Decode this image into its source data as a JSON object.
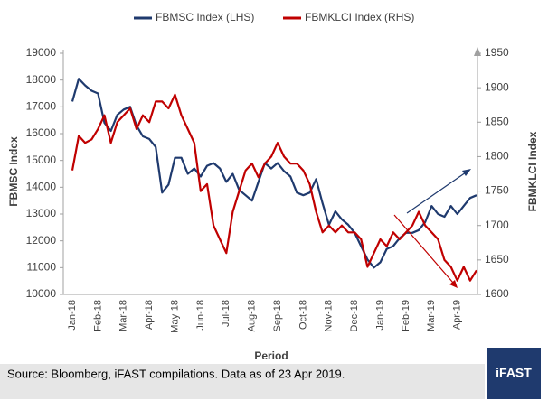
{
  "chart_data": {
    "type": "line",
    "x_label": "Period",
    "y_label": "FBMSC Index",
    "y2_label": "FBMKLCI Index",
    "categories": [
      "Jan-18",
      null,
      null,
      null,
      "Feb-18",
      null,
      null,
      null,
      "Mar-18",
      null,
      null,
      null,
      "Apr-18",
      null,
      null,
      null,
      "May-18",
      null,
      null,
      null,
      "Jun-18",
      null,
      null,
      null,
      "Jul-18",
      null,
      null,
      null,
      "Aug-18",
      null,
      null,
      null,
      "Sep-18",
      null,
      null,
      null,
      "Oct-18",
      null,
      null,
      null,
      "Nov-18",
      null,
      null,
      null,
      "Dec-18",
      null,
      null,
      null,
      "Jan-19",
      null,
      null,
      null,
      "Feb-19",
      null,
      null,
      null,
      "Mar-19",
      null,
      null,
      null,
      "Apr-19",
      null,
      null,
      null
    ],
    "series": [
      {
        "name": "FBMSC Index (LHS)",
        "color": "#1f3a6e",
        "axis": "y",
        "values": [
          17200,
          18050,
          17800,
          17600,
          17500,
          16400,
          16100,
          16700,
          16900,
          17000,
          16300,
          15900,
          15800,
          15500,
          13800,
          14100,
          15100,
          15100,
          14500,
          14700,
          14400,
          14800,
          14900,
          14700,
          14200,
          14500,
          13900,
          13700,
          13500,
          14200,
          14900,
          14700,
          14900,
          14600,
          14400,
          13800,
          13700,
          13800,
          14300,
          13400,
          12600,
          13100,
          12800,
          12600,
          12300,
          11800,
          11300,
          11000,
          11200,
          11700,
          11800,
          12100,
          12300,
          12300,
          12400,
          12700,
          13300,
          13000,
          12900,
          13300,
          13000,
          13300,
          13600,
          13700
        ]
      },
      {
        "name": "FBMKLCI Index (RHS)",
        "color": "#c00000",
        "axis": "y2",
        "values": [
          1780,
          1830,
          1820,
          1825,
          1840,
          1860,
          1820,
          1850,
          1860,
          1870,
          1840,
          1860,
          1850,
          1880,
          1880,
          1870,
          1890,
          1860,
          1840,
          1820,
          1750,
          1760,
          1700,
          1680,
          1660,
          1720,
          1750,
          1780,
          1790,
          1770,
          1790,
          1800,
          1820,
          1800,
          1790,
          1790,
          1780,
          1760,
          1720,
          1690,
          1700,
          1690,
          1700,
          1690,
          1690,
          1680,
          1640,
          1660,
          1680,
          1670,
          1690,
          1680,
          1690,
          1700,
          1720,
          1700,
          1690,
          1680,
          1650,
          1640,
          1620,
          1640,
          1620,
          1635
        ]
      }
    ],
    "ylim": [
      10000,
      19000
    ],
    "yticks": [
      10000,
      11000,
      12000,
      13000,
      14000,
      15000,
      16000,
      17000,
      18000,
      19000
    ],
    "y2lim": [
      1600,
      1950
    ],
    "y2ticks": [
      1600,
      1650,
      1700,
      1750,
      1800,
      1850,
      1900,
      1950
    ],
    "source": "Source: Bloomberg, iFAST compilations. Data as of 23 Apr 2019.",
    "brand": "iFAST"
  }
}
